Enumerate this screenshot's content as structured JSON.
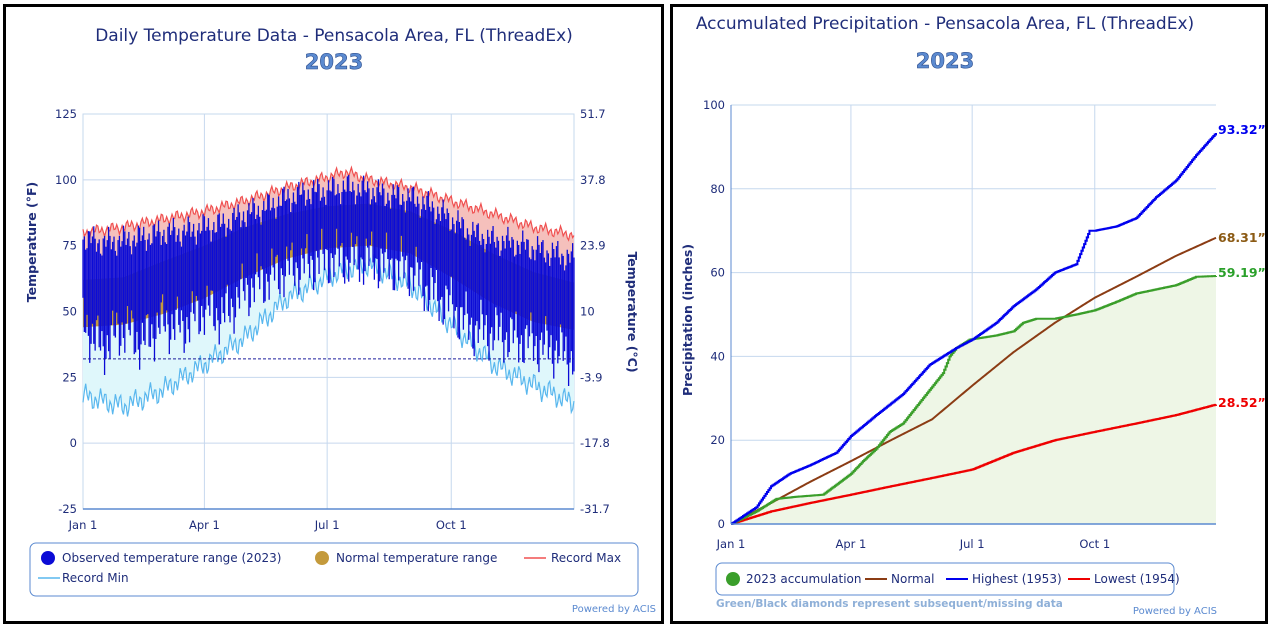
{
  "left_chart": {
    "title": "Daily Temperature Data - Pensacola Area, FL (ThreadEx)",
    "year": "2023",
    "ylabel_left": "Temperature (°F)",
    "ylabel_right": "Temperature (°C)",
    "yticks_f": [
      "125",
      "100",
      "75",
      "50",
      "25",
      "0",
      "-25"
    ],
    "yticks_c": [
      "51.7",
      "37.8",
      "23.9",
      "10",
      "-3.9",
      "-17.8",
      "-31.7"
    ],
    "xticks": [
      "Jan 1",
      "Apr 1",
      "Jul 1",
      "Oct 1"
    ],
    "legend": {
      "observed": "Observed temperature range (2023)",
      "normal": "Normal temperature range",
      "record_max": "Record Max",
      "record_min": "Record Min"
    },
    "credit": "Powered by ACIS",
    "colors": {
      "observed": "#0b0bd6",
      "normal": "#c49a3c",
      "record_max": "#f05050",
      "record_min": "#59b7ee",
      "record_fill_hi": "#f5c0bc",
      "record_fill_lo": "#dff7fb"
    }
  },
  "right_chart": {
    "title": "Accumulated Precipitation - Pensacola Area, FL (ThreadEx)",
    "year": "2023",
    "ylabel": "Precipitation (inches)",
    "yticks": [
      "100",
      "80",
      "60",
      "40",
      "20",
      "0"
    ],
    "xticks": [
      "Jan 1",
      "Apr 1",
      "Jul 1",
      "Oct 1"
    ],
    "end_labels": {
      "highest": "93.32”",
      "normal": "68.31”",
      "accum": "59.19”",
      "lowest": "28.52”"
    },
    "legend": {
      "accum": "2023 accumulation",
      "normal": "Normal",
      "highest": "Highest (1953)",
      "lowest": "Lowest (1954)"
    },
    "note": "Green/Black diamonds represent subsequent/missing data",
    "credit": "Powered by ACIS",
    "colors": {
      "accum": "#3a9e2a",
      "normal": "#8b3c14",
      "highest": "#0000ee",
      "lowest": "#ee0000",
      "accum_fill": "#eef6e6"
    }
  },
  "chart_data": [
    {
      "type": "area",
      "title": "Daily Temperature Data - Pensacola Area, FL (ThreadEx)",
      "ylabel": "Temperature (°F)",
      "ylim": [
        -25,
        125
      ],
      "x_unit": "day of year",
      "xlim": [
        1,
        365
      ],
      "series": [
        {
          "name": "Record Max",
          "x": [
            1,
            31,
            60,
            91,
            121,
            152,
            182,
            196,
            213,
            244,
            274,
            305,
            335,
            365
          ],
          "values": [
            80,
            82,
            85,
            88,
            92,
            97,
            101,
            103,
            100,
            97,
            92,
            87,
            82,
            79
          ]
        },
        {
          "name": "Record Min",
          "x": [
            1,
            31,
            60,
            91,
            121,
            152,
            182,
            196,
            213,
            244,
            274,
            305,
            335,
            365
          ],
          "values": [
            18,
            14,
            20,
            30,
            40,
            55,
            63,
            66,
            68,
            60,
            45,
            30,
            22,
            15
          ]
        },
        {
          "name": "Normal temperature range",
          "x": [
            1,
            31,
            60,
            91,
            121,
            152,
            182,
            213,
            244,
            274,
            305,
            335,
            365
          ],
          "high": [
            62,
            63,
            69,
            75,
            82,
            87,
            90,
            91,
            88,
            81,
            72,
            65,
            61
          ],
          "low": [
            44,
            45,
            49,
            55,
            63,
            70,
            74,
            75,
            72,
            63,
            53,
            46,
            43
          ]
        },
        {
          "name": "Observed temperature range (2023)",
          "x": [
            1,
            15,
            31,
            45,
            60,
            75,
            91,
            105,
            121,
            135,
            152,
            166,
            182,
            196,
            213,
            227,
            244,
            258,
            274,
            288,
            305,
            320,
            335,
            350,
            365
          ],
          "high": [
            78,
            76,
            77,
            78,
            80,
            80,
            82,
            83,
            87,
            89,
            93,
            95,
            96,
            97,
            96,
            94,
            93,
            90,
            85,
            80,
            77,
            76,
            74,
            72,
            70
          ],
          "low": [
            50,
            40,
            48,
            42,
            50,
            48,
            55,
            52,
            62,
            66,
            70,
            72,
            74,
            74,
            74,
            72,
            70,
            62,
            56,
            48,
            46,
            44,
            42,
            40,
            36
          ]
        }
      ]
    },
    {
      "type": "line",
      "title": "Accumulated Precipitation - Pensacola Area, FL (ThreadEx)",
      "ylabel": "Precipitation (inches)",
      "ylim": [
        0,
        100
      ],
      "x_unit": "day of year",
      "xlim": [
        1,
        365
      ],
      "series": [
        {
          "name": "2023 accumulation",
          "x": [
            1,
            20,
            35,
            50,
            70,
            91,
            100,
            110,
            120,
            130,
            140,
            150,
            160,
            165,
            170,
            180,
            190,
            200,
            213,
            220,
            230,
            244,
            260,
            274,
            290,
            305,
            320,
            335,
            350,
            365
          ],
          "values": [
            0,
            3,
            6,
            6.5,
            7,
            12,
            15,
            18,
            22,
            24,
            28,
            32,
            36,
            40,
            42,
            44,
            44.5,
            45,
            46,
            48,
            49,
            49,
            50,
            51,
            53,
            55,
            56,
            57,
            59,
            59.19
          ]
        },
        {
          "name": "Normal",
          "x": [
            1,
            31,
            60,
            91,
            121,
            152,
            182,
            213,
            244,
            274,
            305,
            335,
            365
          ],
          "values": [
            0,
            5,
            10,
            15,
            20,
            25,
            33,
            41,
            48,
            54,
            59,
            64,
            68.31
          ]
        },
        {
          "name": "Highest (1953)",
          "x": [
            1,
            20,
            31,
            45,
            60,
            80,
            91,
            110,
            130,
            150,
            170,
            182,
            200,
            213,
            230,
            244,
            260,
            270,
            274,
            290,
            305,
            320,
            335,
            350,
            365
          ],
          "values": [
            0,
            4,
            9,
            12,
            14,
            17,
            21,
            26,
            31,
            38,
            42,
            44,
            48,
            52,
            56,
            60,
            62,
            70,
            70,
            71,
            73,
            78,
            82,
            88,
            93.32
          ]
        },
        {
          "name": "Lowest (1954)",
          "x": [
            1,
            31,
            60,
            91,
            121,
            152,
            182,
            213,
            244,
            274,
            305,
            335,
            365
          ],
          "values": [
            0,
            3,
            5,
            7,
            9,
            11,
            13,
            17,
            20,
            22,
            24,
            26,
            28.52
          ]
        }
      ]
    }
  ]
}
